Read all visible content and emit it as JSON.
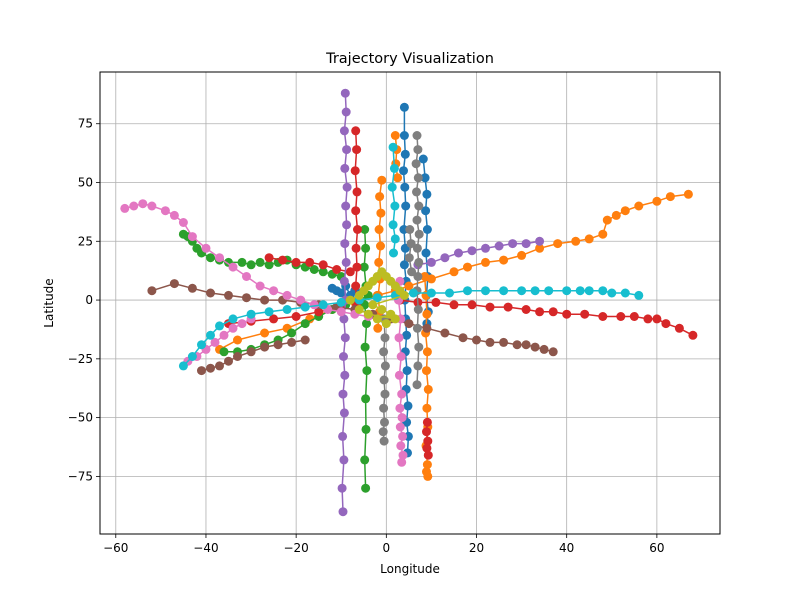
{
  "chart_data": {
    "type": "scatter",
    "title": "Trajectory Visualization",
    "xlabel": "Longitude",
    "ylabel": "Latitude",
    "xlim": [
      -63.5,
      74
    ],
    "ylim": [
      -99.5,
      97
    ],
    "xticks": [
      -60,
      -40,
      -20,
      0,
      20,
      40,
      60
    ],
    "yticks": [
      -75,
      -50,
      -25,
      0,
      25,
      50,
      75
    ],
    "xtick_labels": [
      "−60",
      "−40",
      "−20",
      "0",
      "20",
      "40",
      "60"
    ],
    "ytick_labels": [
      "−75",
      "−50",
      "−25",
      "0",
      "25",
      "50",
      "75"
    ],
    "grid": true,
    "legend": "none",
    "connected": true,
    "series": [
      {
        "color": "#1f77b4",
        "x": [
          4.0,
          4.0,
          4.2,
          3.8,
          4.1,
          4.3,
          3.9,
          4.2,
          4.0,
          4.4,
          4.1,
          4.3,
          4.5,
          4.2,
          4.6,
          4.4,
          4.8,
          4.5,
          4.9,
          4.7
        ],
        "y": [
          82,
          70,
          62,
          55,
          48,
          40,
          30,
          22,
          15,
          8,
          0,
          -8,
          -15,
          -22,
          -30,
          -38,
          -45,
          -52,
          -58,
          -65
        ]
      },
      {
        "color": "#1f77b4",
        "x": [
          8.2,
          8.6,
          9.0,
          8.7,
          9.1,
          8.8,
          9.2,
          8.9,
          9.3,
          9.0
        ],
        "y": [
          60,
          52,
          45,
          38,
          30,
          20,
          10,
          2,
          -5,
          -10
        ]
      },
      {
        "color": "#1f77b4",
        "x": [
          -12,
          -11,
          -10,
          -9,
          -8,
          -7,
          -6
        ],
        "y": [
          5,
          4,
          3,
          6,
          2,
          4,
          3
        ]
      },
      {
        "color": "#ff7f0e",
        "x": [
          67,
          63,
          60,
          56,
          53,
          51,
          49,
          48,
          45,
          42,
          38,
          34,
          30,
          26,
          22,
          18,
          15,
          10,
          5,
          2,
          -2,
          -7,
          -12,
          -17,
          -22,
          -27,
          -33,
          -37
        ],
        "y": [
          45,
          44,
          42,
          40,
          38,
          36,
          34,
          28,
          26,
          25,
          24,
          22,
          19,
          17,
          16,
          14,
          12,
          9,
          6,
          4,
          2,
          -1,
          -4,
          -8,
          -12,
          -14,
          -17,
          -21
        ]
      },
      {
        "color": "#ff7f0e",
        "x": [
          -1,
          -1.5,
          -1.2,
          -1.6,
          -1.3,
          -1.7,
          -1.4,
          -1.8,
          -1.5,
          -1.9
        ],
        "y": [
          51,
          44,
          37,
          30,
          23,
          16,
          9,
          2,
          -5,
          -12
        ]
      },
      {
        "color": "#ff7f0e",
        "x": [
          8.5,
          8.8,
          9.0,
          8.7,
          9.1,
          8.9,
          9.3,
          9.0,
          9.2,
          8.8,
          9.1,
          8.9,
          9.2
        ],
        "y": [
          10,
          2,
          -6,
          -14,
          -22,
          -30,
          -38,
          -46,
          -54,
          -62,
          -70,
          -73,
          -75
        ]
      },
      {
        "color": "#ff7f0e",
        "x": [
          2,
          2.3,
          2.1,
          2.5
        ],
        "y": [
          70,
          64,
          58,
          52
        ]
      },
      {
        "color": "#2ca02c",
        "x": [
          -45,
          -44,
          -43,
          -42,
          -41,
          -39,
          -37,
          -35,
          -32,
          -30,
          -28,
          -26,
          -24,
          -22,
          -20,
          -18,
          -16,
          -14,
          -12,
          -10
        ],
        "y": [
          28,
          27,
          25,
          22,
          20,
          18,
          17,
          16,
          16,
          15,
          16,
          15,
          16,
          17,
          15,
          14,
          13,
          12,
          11,
          10
        ]
      },
      {
        "color": "#2ca02c",
        "x": [
          -36,
          -33,
          -30,
          -27,
          -24,
          -21,
          -18,
          -15,
          -12,
          -9,
          -6,
          -4
        ],
        "y": [
          -22,
          -22,
          -21,
          -19,
          -17,
          -14,
          -10,
          -7,
          -4,
          -2,
          0,
          2
        ]
      },
      {
        "color": "#2ca02c",
        "x": [
          -4.8,
          -4.6,
          -4.9,
          -4.5,
          -4.8,
          -4.4,
          -4.7,
          -4.3,
          -4.6,
          -4.5,
          -4.8,
          -4.6
        ],
        "y": [
          30,
          22,
          14,
          6,
          -2,
          -10,
          -20,
          -30,
          -42,
          -55,
          -68,
          -80
        ]
      },
      {
        "color": "#d62728",
        "x": [
          68,
          65,
          62,
          60,
          58,
          55,
          52,
          48,
          44,
          40,
          37,
          34,
          31,
          27,
          23,
          19,
          15,
          11,
          7,
          3
        ],
        "y": [
          -15,
          -12,
          -10,
          -8,
          -8,
          -7,
          -7,
          -7,
          -6,
          -6,
          -5,
          -5,
          -4,
          -3,
          -3,
          -2,
          -2,
          -1,
          -1,
          0
        ]
      },
      {
        "color": "#d62728",
        "x": [
          -6.8,
          -6.6,
          -6.9,
          -6.5,
          -6.8,
          -6.4,
          -6.7,
          -6.5,
          -6.8,
          -6.6
        ],
        "y": [
          72,
          64,
          55,
          46,
          38,
          30,
          22,
          14,
          6,
          -2
        ]
      },
      {
        "color": "#d62728",
        "x": [
          -26,
          -23,
          -20,
          -17,
          -14,
          -11,
          -8
        ],
        "y": [
          18,
          17,
          16,
          16,
          15,
          13,
          12
        ]
      },
      {
        "color": "#d62728",
        "x": [
          -35,
          -30,
          -25,
          -20,
          -15,
          -10
        ],
        "y": [
          -10,
          -9,
          -8,
          -7,
          -5,
          -3
        ]
      },
      {
        "color": "#d62728",
        "x": [
          9.1,
          8.9,
          9.2,
          9.0,
          9.3
        ],
        "y": [
          -52,
          -56,
          -60,
          -63,
          -66
        ]
      },
      {
        "color": "#9467bd",
        "x": [
          -9.1,
          -8.9,
          -9.3,
          -8.8,
          -9.2,
          -8.7,
          -9.0,
          -8.8,
          -9.2,
          -8.9,
          -9.3,
          -9.0,
          -9.4,
          -9.1,
          -9.5,
          -9.2,
          -9.6,
          -9.3,
          -9.7,
          -9.4,
          -9.8,
          -9.6
        ],
        "y": [
          88,
          80,
          72,
          64,
          56,
          48,
          40,
          32,
          24,
          16,
          8,
          0,
          -8,
          -16,
          -24,
          -32,
          -40,
          -48,
          -58,
          -68,
          -80,
          -90
        ]
      },
      {
        "color": "#9467bd",
        "x": [
          34,
          31,
          28,
          25,
          22,
          19,
          16,
          13,
          10,
          7
        ],
        "y": [
          25,
          24,
          24,
          23,
          22,
          21,
          20,
          18,
          16,
          15
        ]
      },
      {
        "color": "#8c564b",
        "x": [
          37,
          35,
          33,
          31,
          29,
          26,
          23,
          20,
          17,
          13,
          9,
          5,
          1,
          -3,
          -7,
          -11,
          -15,
          -19,
          -23,
          -27,
          -31,
          -35,
          -39,
          -43,
          -47,
          -52
        ],
        "y": [
          -22,
          -21,
          -20,
          -19,
          -19,
          -18,
          -18,
          -17,
          -16,
          -14,
          -12,
          -10,
          -8,
          -6,
          -4,
          -3,
          -2,
          -1,
          0,
          0,
          1,
          2,
          3,
          5,
          7,
          4
        ]
      },
      {
        "color": "#8c564b",
        "x": [
          -41,
          -39,
          -37,
          -35,
          -33,
          -30,
          -27,
          -24,
          -21,
          -18
        ],
        "y": [
          -30,
          -29,
          -28,
          -26,
          -24,
          -22,
          -20,
          -19,
          -18,
          -17
        ]
      },
      {
        "color": "#e377c2",
        "x": [
          -58,
          -56,
          -54,
          -52,
          -49,
          -47,
          -45,
          -43,
          -40,
          -37,
          -34,
          -31,
          -28,
          -25,
          -22,
          -19,
          -16,
          -13,
          -10,
          -7,
          -4
        ],
        "y": [
          39,
          40,
          41,
          40,
          38,
          36,
          33,
          27,
          22,
          18,
          14,
          10,
          6,
          4,
          2,
          0,
          -2,
          -4,
          -5,
          -6,
          -7
        ]
      },
      {
        "color": "#e377c2",
        "x": [
          3,
          2.7,
          3.2,
          2.8,
          3.3,
          2.9,
          3.4,
          3.0,
          3.5,
          3.1,
          3.6,
          3.2,
          3.7,
          3.4
        ],
        "y": [
          8,
          0,
          -8,
          -16,
          -24,
          -32,
          -40,
          -46,
          -50,
          -54,
          -58,
          -62,
          -66,
          -69
        ]
      },
      {
        "color": "#e377c2",
        "x": [
          -44,
          -42,
          -40,
          -38,
          -36,
          -34,
          -32,
          -30
        ],
        "y": [
          -26,
          -24,
          -21,
          -18,
          -15,
          -12,
          -10,
          -8
        ]
      },
      {
        "color": "#7f7f7f",
        "x": [
          6.8,
          7.0,
          6.6,
          7.1,
          6.7,
          7.2,
          6.8,
          7.3,
          6.9,
          7.2,
          7.0,
          6.8,
          7.1,
          6.9,
          7.2,
          7.0,
          6.8
        ],
        "y": [
          70,
          64,
          58,
          52,
          46,
          40,
          34,
          28,
          22,
          16,
          10,
          4,
          -4,
          -12,
          -20,
          -28,
          -36
        ]
      },
      {
        "color": "#7f7f7f",
        "x": [
          -0.5,
          -0.3,
          -0.6,
          -0.2,
          -0.5,
          -0.3,
          -0.6,
          -0.4,
          -0.7,
          -0.5
        ],
        "y": [
          -8,
          -16,
          -22,
          -28,
          -34,
          -40,
          -46,
          -52,
          -56,
          -60
        ]
      },
      {
        "color": "#7f7f7f",
        "x": [
          5.2,
          5.5,
          5.1,
          5.6
        ],
        "y": [
          30,
          24,
          18,
          12
        ]
      },
      {
        "color": "#17becf",
        "x": [
          56,
          53,
          50,
          48,
          45,
          43,
          40,
          36,
          33,
          30,
          26,
          22,
          18,
          14,
          10,
          6,
          2,
          -2,
          -6,
          -10,
          -14,
          -18,
          -22,
          -26,
          -30,
          -34,
          -37,
          -39,
          -41,
          -43,
          -45
        ],
        "y": [
          2,
          3,
          3,
          4,
          4,
          4,
          4,
          4,
          4,
          4,
          4,
          4,
          4,
          3,
          3,
          3,
          2,
          1,
          0,
          -1,
          -2,
          -3,
          -4,
          -5,
          -6,
          -8,
          -11,
          -15,
          -19,
          -24,
          -28
        ]
      },
      {
        "color": "#17becf",
        "x": [
          1.5,
          1.8,
          1.3,
          1.9,
          1.5,
          2.0,
          1.6
        ],
        "y": [
          65,
          56,
          48,
          40,
          32,
          26,
          20
        ]
      },
      {
        "color": "#bcbd22",
        "x": [
          -8,
          -6,
          -5,
          -4,
          -3,
          -2,
          -1,
          0,
          1,
          2,
          3,
          4,
          -3,
          -1,
          1,
          -2,
          0,
          2,
          -4,
          -6
        ],
        "y": [
          0,
          2,
          4,
          6,
          8,
          10,
          12,
          10,
          8,
          6,
          4,
          2,
          -2,
          -4,
          -6,
          -8,
          -10,
          -8,
          -6,
          -4
        ]
      }
    ]
  }
}
